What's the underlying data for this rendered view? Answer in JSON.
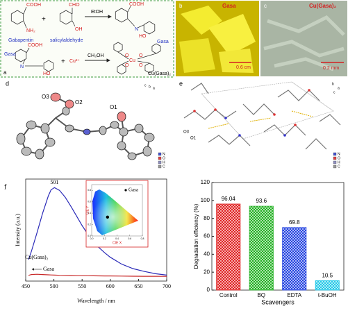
{
  "panel_a": {
    "label": "a",
    "gabapentin": {
      "name": "Gabapentin",
      "acid": "COOH",
      "amine": "NH₂"
    },
    "plus_1": "+",
    "salicylaldehyde": {
      "name": "salicylaldehyde",
      "aldehyde": "CHO",
      "hydroxyl": "OH"
    },
    "solvent_1": "EtOH",
    "gasa": {
      "name": "Gasa",
      "acid": "COOH",
      "imine": "N",
      "hydroxyl": "HO"
    },
    "gasa_2": {
      "name": "Gasa",
      "acid": "COOH",
      "imine": "N",
      "hydroxyl": "HO"
    },
    "plus_2": "+",
    "copper": "Cu²⁺",
    "solvent_2": "CH₃OH",
    "complex": {
      "name": "Cu(Gasa)₂",
      "metal": "Cu",
      "oxygen": "O"
    }
  },
  "panel_b": {
    "label": "b",
    "title": "Gasa",
    "scale": "0.6 cm"
  },
  "panel_c": {
    "label": "c",
    "title": "Cu(Gasa)₂",
    "scale": "0.2 mm"
  },
  "panel_d": {
    "label": "d",
    "atoms": [
      "O3",
      "O2",
      "O1"
    ],
    "axes": [
      "c",
      "b",
      "a"
    ],
    "legend": [
      "N",
      "O",
      "H",
      "C"
    ],
    "legend_colors": [
      "#4050d0",
      "#e04040",
      "#9090c0",
      "#999999"
    ]
  },
  "panel_e": {
    "label": "e",
    "atoms": [
      "O3",
      "O1"
    ],
    "axes": [
      "b",
      "a",
      "c"
    ],
    "legend": [
      "N",
      "O",
      "H",
      "C"
    ],
    "legend_colors": [
      "#4050d0",
      "#e04040",
      "#9090c0",
      "#999999"
    ]
  },
  "chart_data": [
    {
      "type": "line",
      "label": "f",
      "xlabel": "Wavelength / nm",
      "ylabel": "Intensity (a.u.)",
      "peak_label": "501",
      "x": [
        455,
        460,
        470,
        480,
        490,
        495,
        501,
        510,
        520,
        530,
        540,
        550,
        560,
        570,
        580,
        590,
        600,
        620,
        640,
        660,
        680,
        700
      ],
      "series": [
        {
          "name": "Gasa",
          "color": "#2a2ab8",
          "values": [
            380,
            520,
            850,
            1200,
            1500,
            1610,
            1650,
            1600,
            1480,
            1320,
            1150,
            980,
            830,
            700,
            590,
            500,
            420,
            300,
            220,
            170,
            130,
            105
          ]
        },
        {
          "name": "Cu(Gasa)₂",
          "color": "#c82828",
          "values": [
            100,
            115,
            120,
            115,
            110,
            108,
            105,
            102,
            100,
            98,
            96,
            95,
            94,
            93,
            92,
            91,
            90,
            88,
            86,
            85,
            84,
            83
          ]
        }
      ],
      "xlim": [
        450,
        700
      ],
      "xticks": [
        450,
        500,
        550,
        600,
        650,
        700
      ],
      "ylim": [
        0,
        1800
      ]
    },
    {
      "type": "scatter",
      "xlabel": "CIE X",
      "ylabel": "CIE Y",
      "series": [
        {
          "name": "Gasa",
          "color": "#000000",
          "x": [
            0.25
          ],
          "values": [
            0.33
          ]
        }
      ],
      "xlim": [
        0,
        0.8
      ],
      "ylim": [
        0,
        0.9
      ],
      "xticks": [
        {
          "value": 0,
          "label": "0.0"
        },
        {
          "value": 0.2,
          "label": "0.2"
        },
        {
          "value": 0.4,
          "label": "0.4"
        },
        {
          "value": 0.6,
          "label": "0.6"
        },
        {
          "value": 0.8,
          "label": "0.8"
        }
      ],
      "yticks": [
        {
          "value": 0,
          "label": "0.0"
        },
        {
          "value": 0.2,
          "label": "0.2"
        },
        {
          "value": 0.4,
          "label": "0.4"
        },
        {
          "value": 0.6,
          "label": "0.6"
        },
        {
          "value": 0.8,
          "label": "0.8"
        }
      ]
    },
    {
      "type": "bar",
      "xlabel": "Scavengers",
      "ylabel": "Degradation efficiency (%)",
      "categories": [
        "Control",
        "BQ",
        "EDTA",
        "t-BuOH"
      ],
      "values": [
        96.04,
        93.6,
        69.8,
        10.5
      ],
      "colors": [
        "#e02020",
        "#20b020",
        "#2040e0",
        "#20c8e8"
      ],
      "ylim": [
        0,
        120
      ],
      "yticks": [
        0,
        20,
        40,
        60,
        80,
        100,
        120
      ]
    }
  ]
}
